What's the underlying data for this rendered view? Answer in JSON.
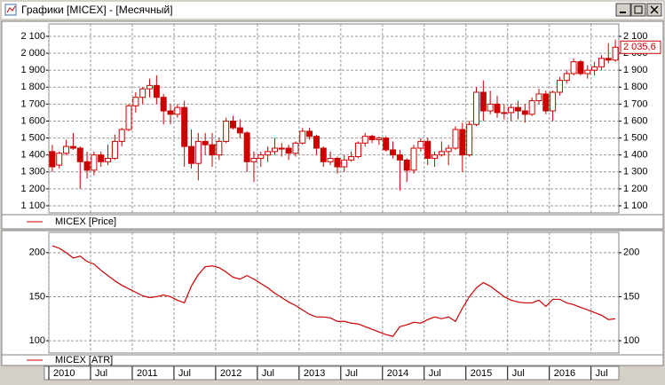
{
  "window": {
    "title": "Графики [MICEX] - [Месячный]"
  },
  "chart_data": [
    {
      "type": "candlestick",
      "series_name": "MICEX [Price]",
      "color": "#cc0000",
      "grid": true,
      "x": [
        "2010-01",
        "2010-02",
        "2010-03",
        "2010-04",
        "2010-05",
        "2010-06",
        "2010-07",
        "2010-08",
        "2010-09",
        "2010-10",
        "2010-11",
        "2010-12",
        "2011-01",
        "2011-02",
        "2011-03",
        "2011-04",
        "2011-05",
        "2011-06",
        "2011-07",
        "2011-08",
        "2011-09",
        "2011-10",
        "2011-11",
        "2011-12",
        "2012-01",
        "2012-02",
        "2012-03",
        "2012-04",
        "2012-05",
        "2012-06",
        "2012-07",
        "2012-08",
        "2012-09",
        "2012-10",
        "2012-11",
        "2012-12",
        "2013-01",
        "2013-02",
        "2013-03",
        "2013-04",
        "2013-05",
        "2013-06",
        "2013-07",
        "2013-08",
        "2013-09",
        "2013-10",
        "2013-11",
        "2013-12",
        "2014-01",
        "2014-02",
        "2014-03",
        "2014-04",
        "2014-05",
        "2014-06",
        "2014-07",
        "2014-08",
        "2014-09",
        "2014-10",
        "2014-11",
        "2014-12",
        "2015-01",
        "2015-02",
        "2015-03",
        "2015-04",
        "2015-05",
        "2015-06",
        "2015-07",
        "2015-08",
        "2015-09",
        "2015-10",
        "2015-11",
        "2015-12",
        "2016-01",
        "2016-02",
        "2016-03",
        "2016-04",
        "2016-05",
        "2016-06",
        "2016-07",
        "2016-08",
        "2016-09",
        "2016-10"
      ],
      "open": [
        1420,
        1340,
        1410,
        1450,
        1440,
        1360,
        1310,
        1400,
        1360,
        1380,
        1480,
        1550,
        1690,
        1740,
        1790,
        1810,
        1740,
        1660,
        1640,
        1680,
        1450,
        1350,
        1480,
        1460,
        1400,
        1480,
        1600,
        1560,
        1530,
        1360,
        1380,
        1400,
        1420,
        1440,
        1440,
        1410,
        1470,
        1540,
        1510,
        1440,
        1360,
        1380,
        1330,
        1370,
        1390,
        1470,
        1510,
        1490,
        1500,
        1430,
        1400,
        1370,
        1310,
        1440,
        1480,
        1380,
        1400,
        1420,
        1440,
        1550,
        1400,
        1580,
        1770,
        1660,
        1700,
        1650,
        1650,
        1680,
        1660,
        1640,
        1720,
        1760,
        1660,
        1770,
        1840,
        1880,
        1950,
        1880,
        1900,
        1920,
        1970,
        1960
      ],
      "high": [
        1460,
        1420,
        1490,
        1530,
        1450,
        1420,
        1420,
        1420,
        1460,
        1520,
        1560,
        1700,
        1770,
        1800,
        1850,
        1870,
        1760,
        1700,
        1700,
        1720,
        1550,
        1530,
        1530,
        1530,
        1500,
        1620,
        1630,
        1610,
        1540,
        1420,
        1420,
        1450,
        1500,
        1470,
        1460,
        1480,
        1560,
        1560,
        1520,
        1450,
        1420,
        1390,
        1400,
        1420,
        1480,
        1530,
        1520,
        1510,
        1510,
        1480,
        1430,
        1380,
        1460,
        1500,
        1500,
        1420,
        1480,
        1460,
        1570,
        1590,
        1600,
        1800,
        1840,
        1780,
        1750,
        1700,
        1700,
        1720,
        1700,
        1740,
        1790,
        1780,
        1780,
        1860,
        1900,
        1970,
        1960,
        1930,
        1950,
        1990,
        2060,
        2080
      ],
      "low": [
        1300,
        1320,
        1400,
        1430,
        1200,
        1260,
        1280,
        1330,
        1340,
        1370,
        1450,
        1540,
        1650,
        1700,
        1740,
        1700,
        1580,
        1580,
        1620,
        1330,
        1320,
        1250,
        1400,
        1330,
        1370,
        1470,
        1550,
        1500,
        1300,
        1240,
        1330,
        1360,
        1400,
        1390,
        1370,
        1390,
        1460,
        1490,
        1400,
        1330,
        1340,
        1290,
        1300,
        1360,
        1380,
        1450,
        1470,
        1460,
        1420,
        1380,
        1190,
        1240,
        1290,
        1420,
        1340,
        1330,
        1390,
        1340,
        1430,
        1300,
        1390,
        1570,
        1600,
        1640,
        1620,
        1610,
        1600,
        1610,
        1590,
        1630,
        1700,
        1640,
        1600,
        1750,
        1820,
        1870,
        1870,
        1850,
        1870,
        1900,
        1940,
        1950
      ],
      "close": [
        1330,
        1410,
        1450,
        1440,
        1360,
        1310,
        1400,
        1360,
        1380,
        1480,
        1550,
        1690,
        1740,
        1790,
        1810,
        1740,
        1660,
        1640,
        1680,
        1450,
        1350,
        1480,
        1460,
        1400,
        1480,
        1600,
        1560,
        1530,
        1360,
        1380,
        1400,
        1420,
        1440,
        1440,
        1410,
        1470,
        1540,
        1510,
        1440,
        1360,
        1380,
        1330,
        1370,
        1390,
        1470,
        1510,
        1490,
        1500,
        1430,
        1400,
        1370,
        1310,
        1440,
        1480,
        1380,
        1400,
        1420,
        1440,
        1550,
        1400,
        1580,
        1770,
        1660,
        1700,
        1650,
        1650,
        1680,
        1660,
        1640,
        1720,
        1760,
        1660,
        1770,
        1840,
        1880,
        1950,
        1880,
        1900,
        1920,
        1970,
        1960,
        2035.6
      ],
      "last_value": 2035.6,
      "last_label": "2 035,6",
      "ylim": [
        1058,
        2173
      ],
      "yticks": [
        {
          "value": 1100,
          "label": "1 100"
        },
        {
          "value": 1200,
          "label": "1 200"
        },
        {
          "value": 1300,
          "label": "1 300"
        },
        {
          "value": 1400,
          "label": "1 400"
        },
        {
          "value": 1500,
          "label": "1 500"
        },
        {
          "value": 1600,
          "label": "1 600"
        },
        {
          "value": 1700,
          "label": "1 700"
        },
        {
          "value": 1800,
          "label": "1 800"
        },
        {
          "value": 1900,
          "label": "1 900"
        },
        {
          "value": 2000,
          "label": "2 000"
        },
        {
          "value": 2100,
          "label": "2 100"
        }
      ]
    },
    {
      "type": "line",
      "series_name": "MICEX [ATR]",
      "color": "#cc0000",
      "grid": true,
      "x": [
        "2010-01",
        "2010-02",
        "2010-03",
        "2010-04",
        "2010-05",
        "2010-06",
        "2010-07",
        "2010-08",
        "2010-09",
        "2010-10",
        "2010-11",
        "2010-12",
        "2011-01",
        "2011-02",
        "2011-03",
        "2011-04",
        "2011-05",
        "2011-06",
        "2011-07",
        "2011-08",
        "2011-09",
        "2011-10",
        "2011-11",
        "2011-12",
        "2012-01",
        "2012-02",
        "2012-03",
        "2012-04",
        "2012-05",
        "2012-06",
        "2012-07",
        "2012-08",
        "2012-09",
        "2012-10",
        "2012-11",
        "2012-12",
        "2013-01",
        "2013-02",
        "2013-03",
        "2013-04",
        "2013-05",
        "2013-06",
        "2013-07",
        "2013-08",
        "2013-09",
        "2013-10",
        "2013-11",
        "2013-12",
        "2014-01",
        "2014-02",
        "2014-03",
        "2014-04",
        "2014-05",
        "2014-06",
        "2014-07",
        "2014-08",
        "2014-09",
        "2014-10",
        "2014-11",
        "2014-12",
        "2015-01",
        "2015-02",
        "2015-03",
        "2015-04",
        "2015-05",
        "2015-06",
        "2015-07",
        "2015-08",
        "2015-09",
        "2015-10",
        "2015-11",
        "2015-12",
        "2016-01",
        "2016-02",
        "2016-03",
        "2016-04",
        "2016-05",
        "2016-06",
        "2016-07",
        "2016-08",
        "2016-09",
        "2016-10"
      ],
      "values": [
        208,
        205,
        200,
        194,
        196,
        190,
        187,
        180,
        174,
        168,
        163,
        159,
        155,
        151,
        149,
        150,
        152,
        150,
        146,
        143,
        162,
        175,
        184,
        185,
        183,
        178,
        172,
        170,
        174,
        170,
        165,
        160,
        154,
        149,
        144,
        140,
        135,
        130,
        127,
        127,
        126,
        122,
        122,
        120,
        119,
        116,
        113,
        110,
        107,
        105,
        116,
        118,
        121,
        120,
        124,
        127,
        125,
        127,
        122,
        137,
        150,
        160,
        166,
        162,
        156,
        150,
        146,
        144,
        143,
        143,
        146,
        139,
        147,
        147,
        143,
        141,
        138,
        135,
        132,
        129,
        124,
        125
      ],
      "ylim": [
        86,
        223
      ],
      "yticks": [
        100,
        150,
        200
      ],
      "xticks": [
        {
          "value": "2010-01",
          "label": "2010"
        },
        {
          "value": "2010-07",
          "label": "Jul"
        },
        {
          "value": "2011-01",
          "label": "2011"
        },
        {
          "value": "2011-07",
          "label": "Jul"
        },
        {
          "value": "2012-01",
          "label": "2012"
        },
        {
          "value": "2012-07",
          "label": "Jul"
        },
        {
          "value": "2013-01",
          "label": "2013"
        },
        {
          "value": "2013-07",
          "label": "Jul"
        },
        {
          "value": "2014-01",
          "label": "2014"
        },
        {
          "value": "2014-07",
          "label": "Jul"
        },
        {
          "value": "2015-01",
          "label": "2015"
        },
        {
          "value": "2015-07",
          "label": "Jul"
        },
        {
          "value": "2016-01",
          "label": "2016"
        },
        {
          "value": "2016-07",
          "label": "Jul"
        }
      ]
    }
  ]
}
